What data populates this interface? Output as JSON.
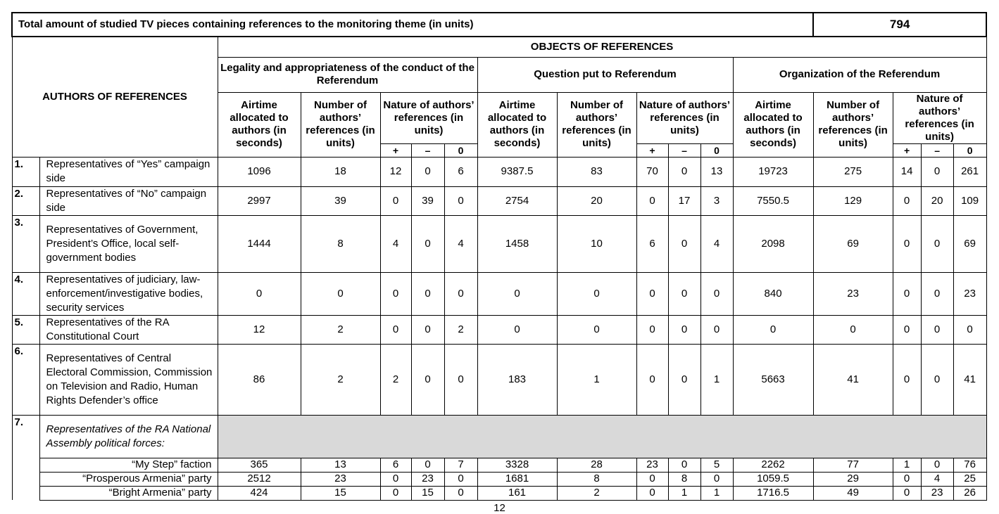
{
  "total_row": {
    "label": "Total amount of studied TV pieces containing references to the monitoring theme (in units)",
    "value": 794
  },
  "header": {
    "authors_label": "AUTHORS OF REFERENCES",
    "objects_label": "OBJECTS OF REFERENCES",
    "groups": [
      {
        "name": "Legality and appropriateness of the conduct of the Referendum",
        "columns": [
          "Airtime allocated to authors (in seconds)",
          "Number of authors’ references (in units)",
          "Nature of authors’ references (in units)"
        ],
        "signs": [
          "+",
          "–",
          "0"
        ]
      },
      {
        "name": "Question put to Referendum",
        "columns": [
          "Airtime allocated to authors (in seconds)",
          "Number of authors’ references (in units)",
          "Nature of authors’ references (in units)"
        ],
        "signs": [
          "+",
          "–",
          "0"
        ]
      },
      {
        "name": "Organization of the Referendum",
        "columns": [
          "Airtime allocated to authors (in seconds)",
          "Number of authors’ references (in units)",
          "Nature of authors’ references (in units)"
        ],
        "signs": [
          "+",
          "–",
          "0"
        ]
      }
    ]
  },
  "rows": [
    {
      "number": "1.",
      "author": "Representatives of “Yes” campaign side",
      "values": [
        1096,
        18,
        12,
        0,
        6,
        9387.5,
        83,
        70,
        0,
        13,
        19723,
        275,
        14,
        0,
        261
      ]
    },
    {
      "number": "2.",
      "author": "Representatives of “No” campaign side",
      "values": [
        2997,
        39,
        0,
        39,
        0,
        2754,
        20,
        0,
        17,
        3,
        7550.5,
        129,
        0,
        20,
        109
      ]
    },
    {
      "number": "3.",
      "author": "Representatives of Government, President’s Office, local self-government bodies",
      "values": [
        1444,
        8,
        4,
        0,
        4,
        1458,
        10,
        6,
        0,
        4,
        2098,
        69,
        0,
        0,
        69
      ]
    },
    {
      "number": "4.",
      "author": "Representatives of judiciary, law-enforcement/investigative bodies, security services",
      "values": [
        0,
        0,
        0,
        0,
        0,
        0,
        0,
        0,
        0,
        0,
        840,
        23,
        0,
        0,
        23
      ]
    },
    {
      "number": "5.",
      "author": "Representatives of the RA Constitutional Court",
      "values": [
        12,
        2,
        0,
        0,
        2,
        0,
        0,
        0,
        0,
        0,
        0,
        0,
        0,
        0,
        0
      ]
    },
    {
      "number": "6.",
      "author": "Representatives of Central Electoral Commission, Commission on Television and Radio, Human Rights Defender’s office",
      "values": [
        86,
        2,
        2,
        0,
        0,
        183,
        1,
        0,
        0,
        1,
        5663,
        41,
        0,
        0,
        41
      ]
    },
    {
      "number": "7.",
      "author": "Representatives of the RA National Assembly political forces:",
      "sub_rows": [
        {
          "author": "“My Step” faction",
          "values": [
            365,
            13,
            6,
            0,
            7,
            3328,
            28,
            23,
            0,
            5,
            2262,
            77,
            1,
            0,
            76
          ]
        },
        {
          "author": "“Prosperous Armenia” party",
          "values": [
            2512,
            23,
            0,
            23,
            0,
            1681,
            8,
            0,
            8,
            0,
            1059.5,
            29,
            0,
            4,
            25
          ]
        },
        {
          "author": "“Bright Armenia” party",
          "values": [
            424,
            15,
            0,
            15,
            0,
            161,
            2,
            0,
            1,
            1,
            1716.5,
            49,
            0,
            23,
            26
          ]
        }
      ]
    }
  ],
  "footer": {
    "page_number": "12"
  }
}
